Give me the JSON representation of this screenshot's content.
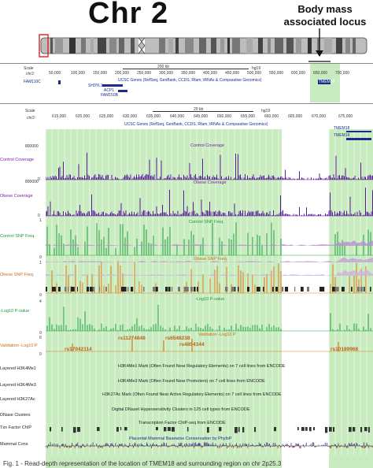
{
  "header": {
    "title": "Chr 2",
    "locus_label": "Body mass associated locus"
  },
  "overview": {
    "scale_label": "Scale",
    "chr_label": "chr2:",
    "scale_bar_text": "200 kb",
    "assembly": "hg19",
    "positions": [
      "50,000",
      "100,000",
      "150,000",
      "200,000",
      "250,000",
      "300,000",
      "350,000",
      "400,000",
      "450,000",
      "500,000",
      "550,000",
      "600,000",
      "650,000",
      "700,000"
    ],
    "genes_track": "UCSC Genes (RefSeq, GenBank, CCDS, Rfam, tRNAs & Comparative Genomics)",
    "gene_names": [
      "FAM110C",
      "SH3YL1",
      "ACP1",
      "FAM150B",
      "TMEM18"
    ]
  },
  "detail": {
    "scale_label": "Scale",
    "chr_label": "chr2:",
    "scale_bar_text": "20 kb",
    "assembly": "hg19",
    "positions": [
      "615,000",
      "620,000",
      "625,000",
      "630,000",
      "635,000",
      "640,000",
      "645,000",
      "650,000",
      "655,000",
      "660,000",
      "665,000",
      "670,000",
      "675,000"
    ],
    "genes_track": "UCSC Genes (RefSeq, GenBank, CCDS, Rfam, tRNAs & Comparative Genomics)",
    "gene_names": [
      "TMEM18",
      "TMEM18"
    ]
  },
  "tracks": {
    "control_cov": {
      "label": "Control Coverage",
      "title": "Control Coverage",
      "ymax": "800000",
      "ymin": "0"
    },
    "obese_cov": {
      "label": "Obese Coverage",
      "title": "Obese Coverage",
      "ymax": "800000",
      "ymin": "0"
    },
    "control_snp": {
      "label": "Control SNP Freq.",
      "title": "Control SNP Freq.",
      "ymax": "1",
      "ymin": "0"
    },
    "obese_snp": {
      "label": "Obese SNP Freq.",
      "title": "Obese SNP Freq.",
      "ymax": "1",
      "ymin": "0"
    },
    "pvalue": {
      "label": "-Log10 P-value",
      "title": "-Log10 P-value",
      "ymax": "4",
      "ymin": "0"
    },
    "validation": {
      "label": "Validation -Log10 P",
      "title": "Validation -Log10 P",
      "ymax": "6",
      "ymin": "0"
    },
    "snps": [
      "rs17042114",
      "rs11274848",
      "rs6548238",
      "rs4854344",
      "rs10189968"
    ],
    "h3k4me1": {
      "label": "Layered H3K4Me1",
      "title": "H3K4Me1 Mark (Often Found Near Regulatory Elements) on 7 cell lines from ENCODE"
    },
    "h3k4me3": {
      "label": "Layered H3K4Me3",
      "title": "H3K4Me3 Mark (Often Found Near Promoters) on 7 cell lines from ENCODE"
    },
    "h3k27ac": {
      "label": "Layered H3K27Ac",
      "title": "H3K27Ac Mark (Often Found Near Active Regulatory Elements) on 7 cell lines from ENCODE"
    },
    "dnase": {
      "label": "DNase Clusters",
      "title": "Digital DNaseI Hypersensitivity Clusters in 125 cell types from ENCODE"
    },
    "txn": {
      "label": "Txn Factor ChIP",
      "title": "Transcription Factor ChIP-seq from ENCODE"
    },
    "cons": {
      "label": "Mammal Cons",
      "title": "Placental Mammal Basewise Conservation by PhyloP"
    }
  },
  "colors": {
    "highlight": "#c8ecc0",
    "control": "#5a1a9a",
    "obese": "#5a1a9a",
    "snp_green": "#22a040",
    "snp_orange": "#e07818",
    "gene_blue": "#1a2c8c"
  },
  "caption": "Fig. 1 - Read-depth representation of the location of TMEM18 and surrounding region on chr 2p25.3"
}
